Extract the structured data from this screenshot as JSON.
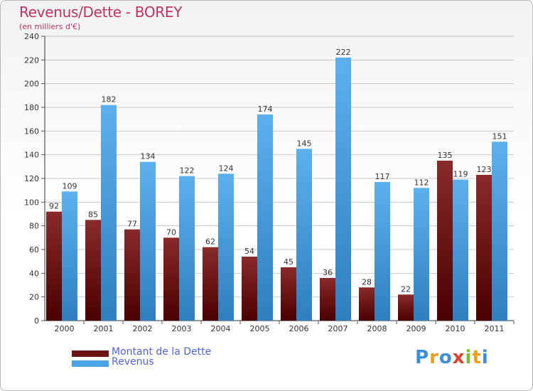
{
  "header": {
    "title": "Revenus/Dette - BOREY",
    "subtitle": "(en milliers d'€)"
  },
  "legend": {
    "items": [
      {
        "label": "Montant de la Dette",
        "color": "#6b1414"
      },
      {
        "label": "Revenus",
        "color": "#4aa3e3"
      }
    ]
  },
  "logo": {
    "text": "Proxiti",
    "letters": [
      {
        "char": "P",
        "color": "#3f8fd8"
      },
      {
        "char": "r",
        "color": "#f0a020"
      },
      {
        "char": "o",
        "color": "#3f8fd8"
      },
      {
        "char": "x",
        "color": "#e0402a"
      },
      {
        "char": "i",
        "color": "#7cbc32"
      },
      {
        "char": "t",
        "color": "#f0a020"
      },
      {
        "char": "i",
        "color": "#3f8fd8"
      }
    ]
  },
  "chart_data": {
    "type": "bar",
    "title": "Revenus/Dette - BOREY",
    "ylabel": "(en milliers d'€)",
    "xlabel": "",
    "ylim": [
      0,
      240
    ],
    "ytick_step": 20,
    "grid": true,
    "legend_position": "bottom-left",
    "categories": [
      "2000",
      "2001",
      "2002",
      "2003",
      "2004",
      "2005",
      "2006",
      "2007",
      "2008",
      "2009",
      "2010",
      "2011"
    ],
    "series": [
      {
        "name": "Montant de la Dette",
        "color": "#6b1414",
        "values": [
          92,
          85,
          77,
          70,
          62,
          54,
          45,
          36,
          28,
          22,
          135,
          123
        ]
      },
      {
        "name": "Revenus",
        "color": "#4aa3e3",
        "values": [
          109,
          182,
          134,
          122,
          124,
          174,
          145,
          222,
          117,
          112,
          119,
          151
        ]
      }
    ]
  }
}
